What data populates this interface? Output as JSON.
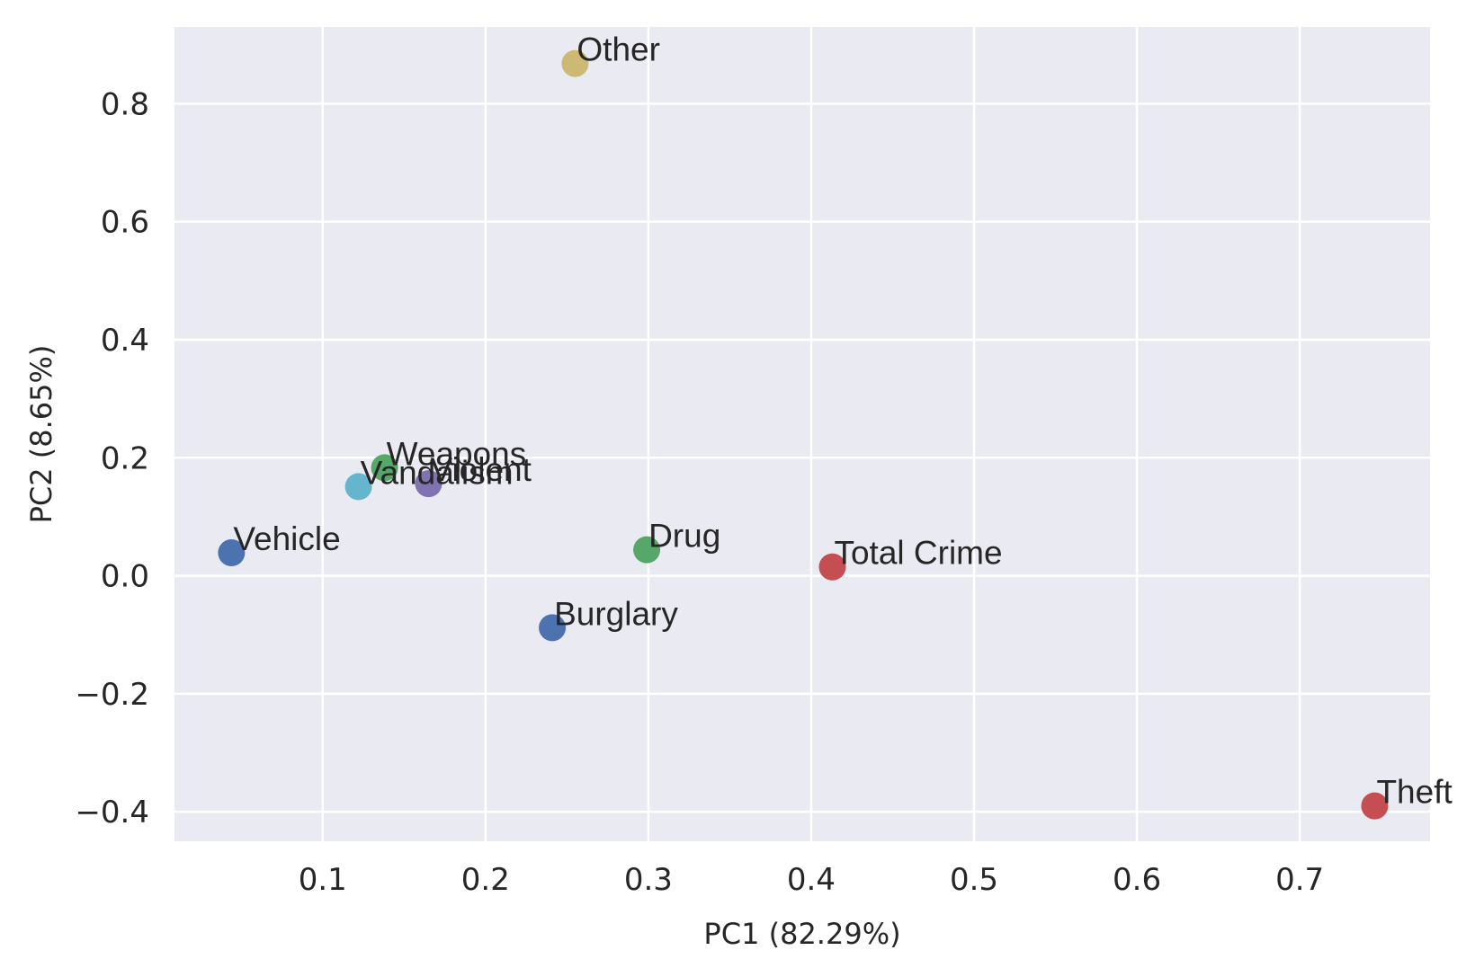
{
  "chart_data": {
    "type": "scatter",
    "title": "",
    "xlabel": "PC1 (82.29%)",
    "ylabel": "PC2 (8.65%)",
    "xlim": [
      0.009,
      0.78
    ],
    "ylim": [
      -0.45,
      0.93
    ],
    "xticks": [
      0.1,
      0.2,
      0.3,
      0.4,
      0.5,
      0.6,
      0.7
    ],
    "xtick_labels": [
      "0.1",
      "0.2",
      "0.3",
      "0.4",
      "0.5",
      "0.6",
      "0.7"
    ],
    "yticks": [
      -0.4,
      -0.2,
      0.0,
      0.2,
      0.4,
      0.6,
      0.8
    ],
    "ytick_labels": [
      "−0.4",
      "−0.2",
      "0.0",
      "0.2",
      "0.4",
      "0.6",
      "0.8"
    ],
    "grid": true,
    "background": "#EAEAF2",
    "grid_color": "#FFFFFF",
    "points": [
      {
        "label": "Vehicle",
        "x": 0.044,
        "y": 0.039,
        "color": "#4C72B0"
      },
      {
        "label": "Vandalism",
        "x": 0.122,
        "y": 0.151,
        "color": "#64B5CD"
      },
      {
        "label": "Weapons",
        "x": 0.138,
        "y": 0.183,
        "color": "#55A868"
      },
      {
        "label": "Violent",
        "x": 0.165,
        "y": 0.156,
        "color": "#8172B2"
      },
      {
        "label": "Burglary",
        "x": 0.241,
        "y": -0.088,
        "color": "#4C72B0"
      },
      {
        "label": "Other",
        "x": 0.255,
        "y": 0.868,
        "color": "#CCB974"
      },
      {
        "label": "Drug",
        "x": 0.299,
        "y": 0.044,
        "color": "#55A868"
      },
      {
        "label": "Total Crime",
        "x": 0.413,
        "y": 0.015,
        "color": "#C44E52"
      },
      {
        "label": "Theft",
        "x": 0.746,
        "y": -0.39,
        "color": "#C44E52"
      }
    ]
  }
}
